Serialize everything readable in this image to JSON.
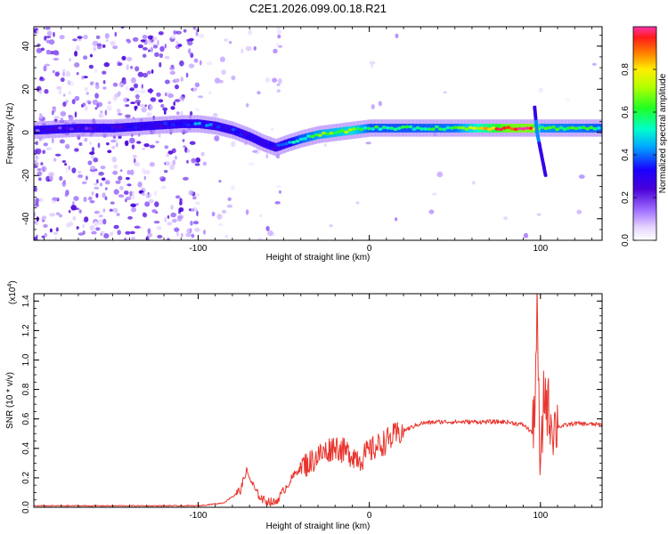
{
  "figure_title": "C2E1.2026.099.00.18.R21",
  "chart_data": [
    {
      "type": "heatmap",
      "xlabel": "Height of straight line (km)",
      "ylabel": "Frequency (Hz)",
      "xlim": [
        -196,
        136
      ],
      "ylim": [
        -50,
        49
      ],
      "xticks": [
        -100,
        0,
        100
      ],
      "xtick_labels": [
        "-100",
        "0",
        "100"
      ],
      "yticks": [
        -40,
        -20,
        0,
        20,
        40
      ],
      "ytick_labels": [
        "-40",
        "-20",
        "0",
        "20",
        "40"
      ],
      "colorbar": {
        "label": "Normalized spectral amplitude",
        "range": [
          0,
          1
        ],
        "ticks": [
          0,
          0.2,
          0.4,
          0.6,
          0.8
        ],
        "tick_labels": [
          "0.0",
          "0.2",
          "0.4",
          "0.6",
          "0.8"
        ]
      },
      "ridge": {
        "x": [
          -196,
          -170,
          -150,
          -130,
          -110,
          -100,
          -90,
          -80,
          -70,
          -62,
          -55,
          -48,
          -40,
          -30,
          -20,
          -10,
          0,
          20,
          50,
          80,
          95,
          100,
          105,
          120,
          136
        ],
        "freq": [
          1,
          2,
          2,
          3,
          4,
          4,
          3,
          1,
          -2,
          -5,
          -7,
          -5,
          -3,
          -1,
          0,
          1,
          2,
          2,
          2,
          2,
          2,
          2,
          2,
          2,
          2
        ],
        "amplitude": [
          0.22,
          0.26,
          0.28,
          0.3,
          0.34,
          0.38,
          0.36,
          0.34,
          0.3,
          0.3,
          0.32,
          0.45,
          0.55,
          0.62,
          0.66,
          0.7,
          0.55,
          0.55,
          0.58,
          0.95,
          0.98,
          0.6,
          0.6,
          0.58,
          0.55
        ]
      },
      "spike": {
        "x": 98,
        "freq_range": [
          -20,
          12
        ]
      }
    },
    {
      "type": "line",
      "xlabel": "Height of straight line (km)",
      "ylabel": "SNR (10 * v/v)",
      "y_multiplier": "(x10",
      "y_multiplier_exp": "4",
      "xlim": [
        -196,
        136
      ],
      "ylim": [
        0,
        1.45
      ],
      "xticks": [
        -100,
        0,
        100
      ],
      "xtick_labels": [
        "-100",
        "0",
        "100"
      ],
      "yticks": [
        0,
        0.2,
        0.4,
        0.6,
        0.8,
        1.0,
        1.2,
        1.4
      ],
      "ytick_labels": [
        "0.0",
        "0.2",
        "0.4",
        "0.6",
        "0.8",
        "1.0",
        "1.2",
        "1.4"
      ],
      "color": "#e8352d",
      "series": [
        {
          "name": "SNR",
          "x": [
            -196,
            -150,
            -100,
            -85,
            -75,
            -72,
            -70,
            -66,
            -62,
            -55,
            -45,
            -40,
            -35,
            -30,
            -25,
            -20,
            -15,
            -10,
            -5,
            0,
            10,
            20,
            30,
            40,
            60,
            80,
            90,
            96,
            98,
            100,
            102,
            104,
            106,
            108,
            112,
            120,
            136
          ],
          "y": [
            0.01,
            0.01,
            0.01,
            0.03,
            0.12,
            0.25,
            0.2,
            0.1,
            0.05,
            0.03,
            0.2,
            0.28,
            0.3,
            0.35,
            0.38,
            0.42,
            0.38,
            0.36,
            0.33,
            0.38,
            0.45,
            0.52,
            0.57,
            0.58,
            0.58,
            0.58,
            0.56,
            0.5,
            1.3,
            0.15,
            0.8,
            0.7,
            0.6,
            0.55,
            0.55,
            0.57,
            0.56
          ]
        }
      ]
    }
  ]
}
